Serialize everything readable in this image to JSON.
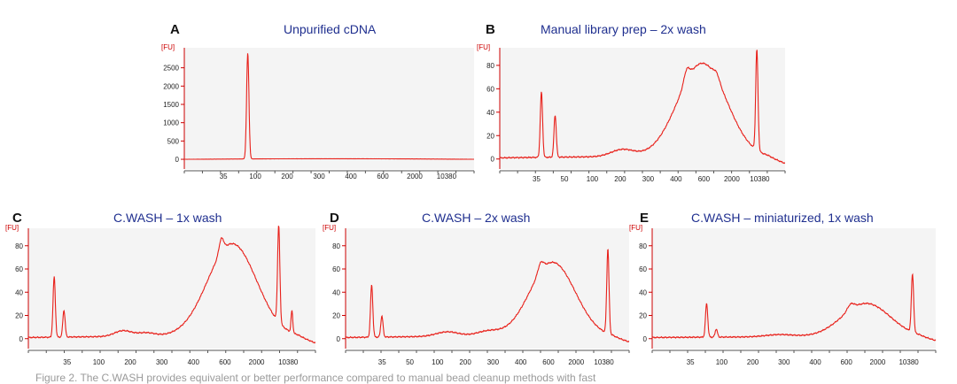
{
  "caption": "Figure 2. The C.WASH provides equivalent or better performance compared to manual bead cleanup methods with fast",
  "colors": {
    "trace": "#e8201a",
    "axis": "#cc0000",
    "title": "#1f2f8f",
    "plot_bg": "#f4f4f4"
  },
  "chart_data": [
    {
      "letter": "A",
      "title": "Unpurified cDNA",
      "type": "line",
      "ylabel": "[FU]",
      "y_ticks": [
        0,
        500,
        1000,
        1500,
        2000,
        2500
      ],
      "ylim": [
        -120,
        2950
      ],
      "x_ticks": [
        "35",
        "100",
        "200",
        "300",
        "400",
        "600",
        "2000",
        "10380"
      ],
      "peaks": [
        {
          "x": 0.219,
          "height": 2900,
          "width": 0.004
        }
      ],
      "humps": [],
      "baseline": {
        "start": 0,
        "drift": 30
      },
      "end_drop": 0
    },
    {
      "letter": "B",
      "title": "Manual library prep – 2x wash",
      "type": "line",
      "ylabel": "[FU]",
      "y_ticks": [
        0,
        20,
        40,
        60,
        80
      ],
      "ylim": [
        -4,
        92
      ],
      "x_ticks": [
        "35",
        "50",
        "100",
        "200",
        "300",
        "400",
        "600",
        "2000",
        "10380"
      ],
      "peaks": [
        {
          "x": 0.146,
          "height": 56,
          "width": 0.004
        },
        {
          "x": 0.194,
          "height": 36,
          "width": 0.004
        },
        {
          "x": 0.901,
          "height": 86,
          "width": 0.004
        }
      ],
      "humps": [
        {
          "x": 0.71,
          "height": 80,
          "width": 0.085
        },
        {
          "x": 0.655,
          "height": 10,
          "width": 0.01
        },
        {
          "x": 0.76,
          "height": 5,
          "width": 0.01
        },
        {
          "x": 0.43,
          "height": 6,
          "width": 0.04
        }
      ],
      "baseline": {
        "start": 1,
        "drift": 2
      },
      "end_drop": 5
    },
    {
      "letter": "C",
      "title": "C.WASH – 1x wash",
      "type": "line",
      "ylabel": "[FU]",
      "y_ticks": [
        0,
        20,
        40,
        60,
        80
      ],
      "ylim": [
        -4,
        92
      ],
      "x_ticks": [
        "35",
        "100",
        "200",
        "300",
        "400",
        "600",
        "2000",
        "10380"
      ],
      "peaks": [
        {
          "x": 0.09,
          "height": 52,
          "width": 0.004
        },
        {
          "x": 0.124,
          "height": 23,
          "width": 0.004
        },
        {
          "x": 0.872,
          "height": 83,
          "width": 0.004
        },
        {
          "x": 0.918,
          "height": 19,
          "width": 0.003
        }
      ],
      "humps": [
        {
          "x": 0.71,
          "height": 80,
          "width": 0.085
        },
        {
          "x": 0.672,
          "height": 12,
          "width": 0.008
        },
        {
          "x": 0.33,
          "height": 5,
          "width": 0.03
        },
        {
          "x": 0.41,
          "height": 3,
          "width": 0.03
        }
      ],
      "baseline": {
        "start": 1,
        "drift": 2
      },
      "end_drop": 5
    },
    {
      "letter": "D",
      "title": "C.WASH – 2x wash",
      "type": "line",
      "ylabel": "[FU]",
      "y_ticks": [
        0,
        20,
        40,
        60,
        80
      ],
      "ylim": [
        -4,
        92
      ],
      "x_ticks": [
        "35",
        "50",
        "100",
        "200",
        "300",
        "400",
        "600",
        "2000",
        "10380"
      ],
      "peaks": [
        {
          "x": 0.092,
          "height": 45,
          "width": 0.004
        },
        {
          "x": 0.128,
          "height": 18,
          "width": 0.004
        },
        {
          "x": 0.925,
          "height": 73,
          "width": 0.004
        }
      ],
      "humps": [
        {
          "x": 0.73,
          "height": 64,
          "width": 0.08
        },
        {
          "x": 0.688,
          "height": 8,
          "width": 0.01
        },
        {
          "x": 0.36,
          "height": 4,
          "width": 0.04
        },
        {
          "x": 0.5,
          "height": 4,
          "width": 0.04
        }
      ],
      "baseline": {
        "start": 1,
        "drift": 2
      },
      "end_drop": 4
    },
    {
      "letter": "E",
      "title": "C.WASH – miniaturized, 1x wash",
      "type": "line",
      "ylabel": "[FU]",
      "y_ticks": [
        0,
        20,
        40,
        60,
        80
      ],
      "ylim": [
        -4,
        92
      ],
      "x_ticks": [
        "35",
        "100",
        "200",
        "300",
        "400",
        "600",
        "2000",
        "10380"
      ],
      "peaks": [
        {
          "x": 0.192,
          "height": 29,
          "width": 0.004
        },
        {
          "x": 0.226,
          "height": 7,
          "width": 0.004
        },
        {
          "x": 0.918,
          "height": 50,
          "width": 0.004
        }
      ],
      "humps": [
        {
          "x": 0.755,
          "height": 29,
          "width": 0.085
        },
        {
          "x": 0.7,
          "height": 5,
          "width": 0.012
        },
        {
          "x": 0.45,
          "height": 2,
          "width": 0.05
        }
      ],
      "baseline": {
        "start": 1,
        "drift": 1
      },
      "end_drop": 3
    }
  ]
}
